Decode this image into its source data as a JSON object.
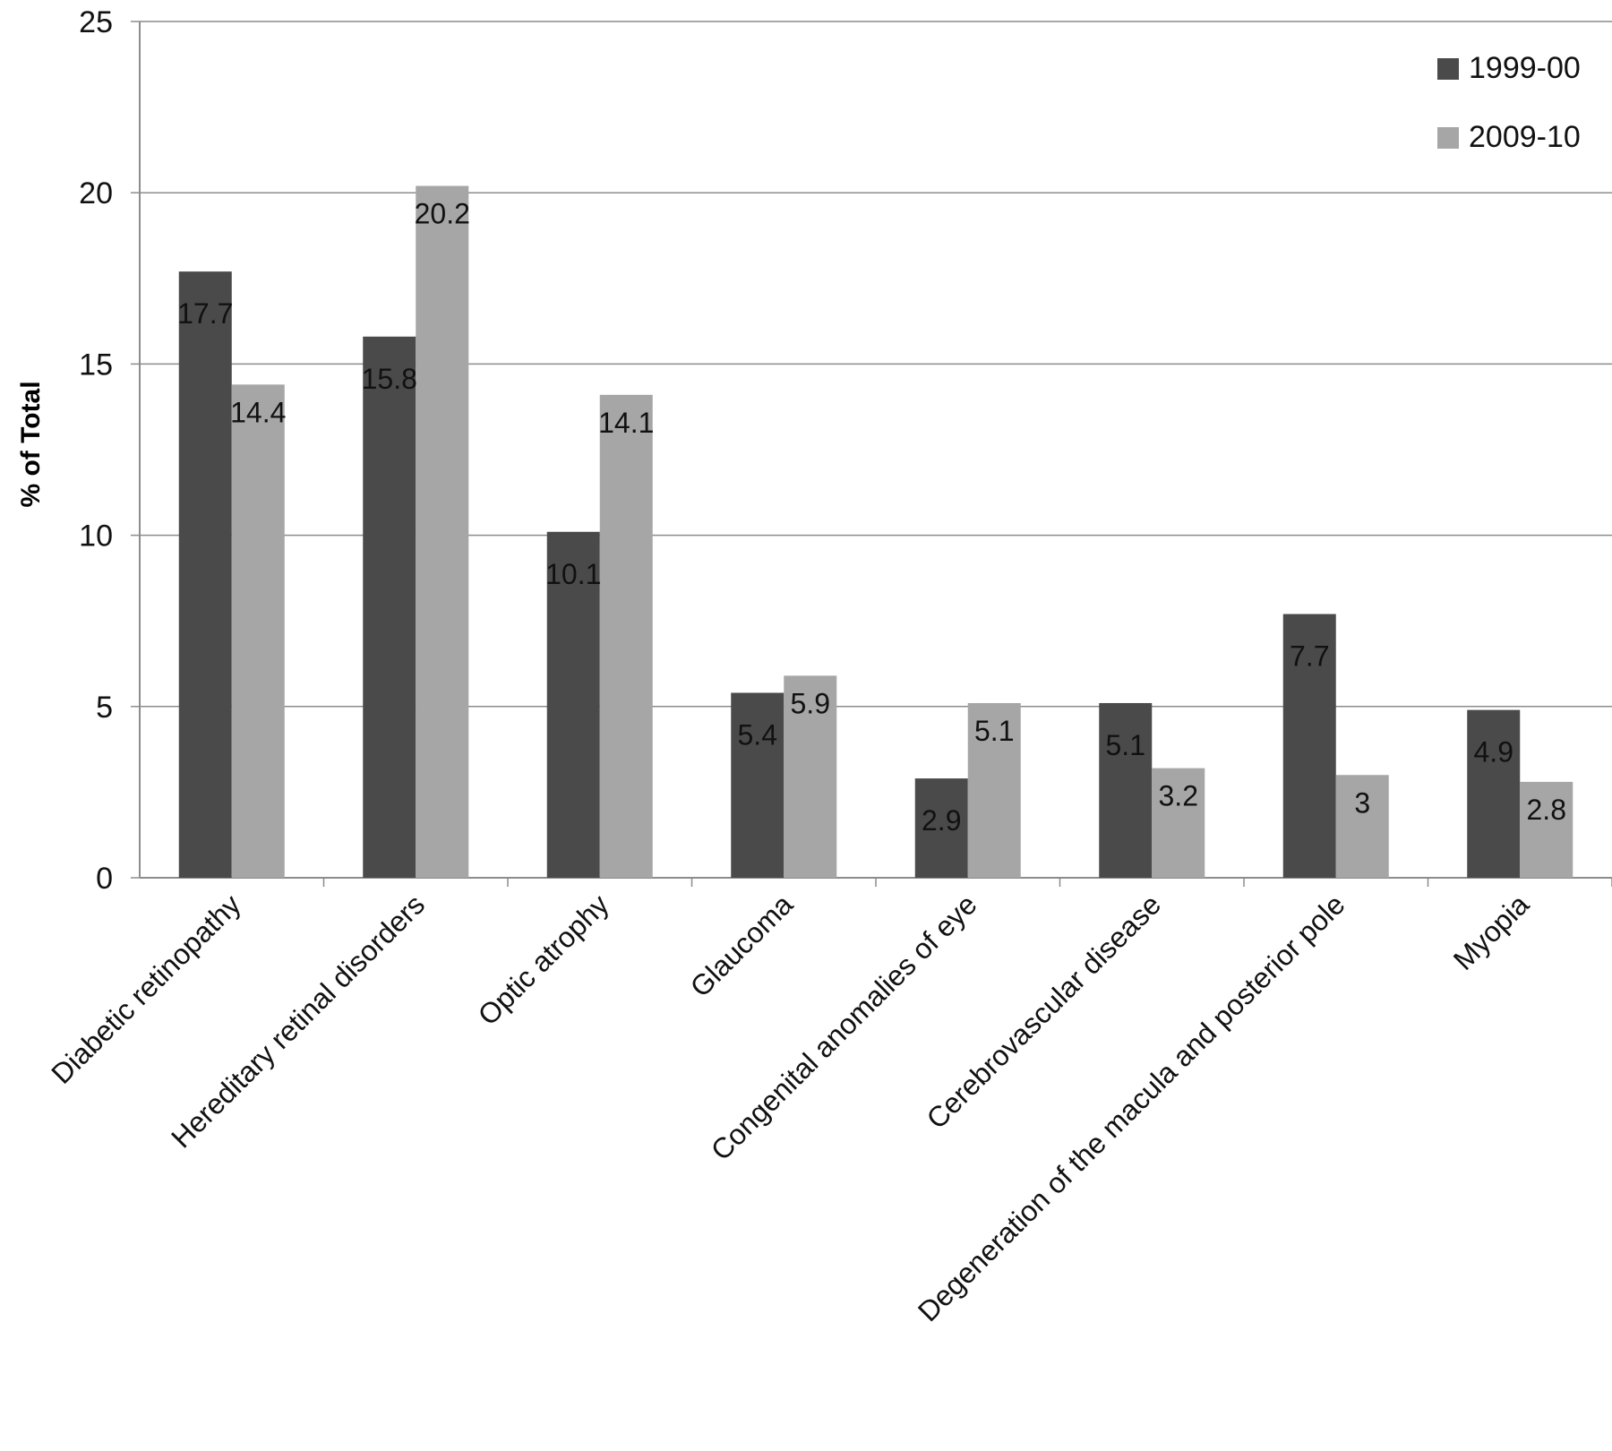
{
  "chart_data": {
    "type": "bar",
    "title": "",
    "xlabel": "",
    "ylabel": "% of Total",
    "ylim": [
      0,
      25
    ],
    "yticks": [
      0,
      5,
      10,
      15,
      20,
      25
    ],
    "grid": true,
    "legend_position": "top-right",
    "categories": [
      "Diabetic retinopathy",
      "Hereditary retinal disorders",
      "Optic atrophy",
      "Glaucoma",
      "Congenital anomalies of eye",
      "Cerebrovascular disease",
      "Degeneration of the macula and posterior pole",
      "Myopia"
    ],
    "series": [
      {
        "name": "1999-00",
        "color": "#4a4a4a",
        "values": [
          17.7,
          15.8,
          10.1,
          5.4,
          2.9,
          5.1,
          7.7,
          4.9
        ]
      },
      {
        "name": "2009-10",
        "color": "#a6a6a6",
        "values": [
          14.4,
          20.2,
          14.1,
          5.9,
          5.1,
          3.2,
          3,
          2.8
        ]
      }
    ]
  }
}
